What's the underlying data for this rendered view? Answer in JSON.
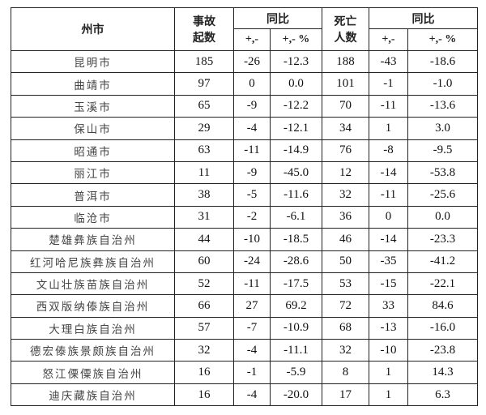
{
  "headers": {
    "region": "州市",
    "accidents": "事故\n起数",
    "yoy1": "同比",
    "deaths": "死亡\n人数",
    "yoy2": "同比",
    "diff": "+,-",
    "pct": "+,- %"
  },
  "rows": [
    [
      "昆明市",
      "185",
      "-26",
      "-12.3",
      "188",
      "-43",
      "-18.6"
    ],
    [
      "曲靖市",
      "97",
      "0",
      "0.0",
      "101",
      "-1",
      "-1.0"
    ],
    [
      "玉溪市",
      "65",
      "-9",
      "-12.2",
      "70",
      "-11",
      "-13.6"
    ],
    [
      "保山市",
      "29",
      "-4",
      "-12.1",
      "34",
      "1",
      "3.0"
    ],
    [
      "昭通市",
      "63",
      "-11",
      "-14.9",
      "76",
      "-8",
      "-9.5"
    ],
    [
      "丽江市",
      "11",
      "-9",
      "-45.0",
      "12",
      "-14",
      "-53.8"
    ],
    [
      "普洱市",
      "38",
      "-5",
      "-11.6",
      "32",
      "-11",
      "-25.6"
    ],
    [
      "临沧市",
      "31",
      "-2",
      "-6.1",
      "36",
      "0",
      "0.0"
    ],
    [
      "楚雄彝族自治州",
      "44",
      "-10",
      "-18.5",
      "46",
      "-14",
      "-23.3"
    ],
    [
      "红河哈尼族彝族自治州",
      "60",
      "-24",
      "-28.6",
      "50",
      "-35",
      "-41.2"
    ],
    [
      "文山壮族苗族自治州",
      "52",
      "-11",
      "-17.5",
      "53",
      "-15",
      "-22.1"
    ],
    [
      "西双版纳傣族自治州",
      "66",
      "27",
      "69.2",
      "72",
      "33",
      "84.6"
    ],
    [
      "大理白族自治州",
      "57",
      "-7",
      "-10.9",
      "68",
      "-13",
      "-16.0"
    ],
    [
      "德宏傣族景颇族自治州",
      "32",
      "-4",
      "-11.1",
      "32",
      "-10",
      "-23.8"
    ],
    [
      "怒江傈僳族自治州",
      "16",
      "-1",
      "-5.9",
      "8",
      "1",
      "14.3"
    ],
    [
      "迪庆藏族自治州",
      "16",
      "-4",
      "-20.0",
      "17",
      "1",
      "6.3"
    ]
  ]
}
